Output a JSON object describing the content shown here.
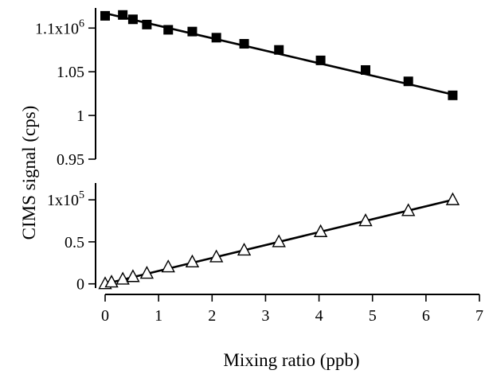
{
  "chart_data": {
    "type": "scatter",
    "xlabel": "Mixing ratio (ppb)",
    "ylabel": "CIMS signal (cps)",
    "xlim": [
      0,
      7
    ],
    "x_ticks": [
      {
        "value": 0,
        "label": "0"
      },
      {
        "value": 1,
        "label": "1"
      },
      {
        "value": 2,
        "label": "2"
      },
      {
        "value": 3,
        "label": "3"
      },
      {
        "value": 4,
        "label": "4"
      },
      {
        "value": 5,
        "label": "5"
      },
      {
        "value": 6,
        "label": "6"
      },
      {
        "value": 7,
        "label": "7"
      }
    ],
    "panels": [
      {
        "id": "top",
        "marker": "filled-square",
        "ylim": [
          950000,
          1123000
        ],
        "y_ticks": [
          {
            "value": 950000,
            "label": "0.95",
            "exp": ""
          },
          {
            "value": 1000000,
            "label": "1",
            "exp": ""
          },
          {
            "value": 1050000,
            "label": "1.05",
            "exp": ""
          },
          {
            "value": 1100000,
            "label": "1.1x10",
            "exp": "6"
          }
        ],
        "x": [
          0,
          0.33,
          0.52,
          0.78,
          1.18,
          1.63,
          2.08,
          2.6,
          3.25,
          4.03,
          4.87,
          5.67,
          6.5
        ],
        "y": [
          1114000,
          1115000,
          1110000,
          1104000,
          1098000,
          1096000,
          1089000,
          1082000,
          1075000,
          1063000,
          1052000,
          1039000,
          1023000
        ],
        "fit": {
          "x": [
            0,
            6.5
          ],
          "y": [
            1117000,
            1024000
          ]
        }
      },
      {
        "id": "bottom",
        "marker": "open-triangle",
        "ylim": [
          -5000,
          120000
        ],
        "y_ticks": [
          {
            "value": 0,
            "label": "0",
            "exp": ""
          },
          {
            "value": 50000,
            "label": "0.5",
            "exp": ""
          },
          {
            "value": 100000,
            "label": "1x10",
            "exp": "5"
          }
        ],
        "x": [
          0,
          0.12,
          0.33,
          0.52,
          0.78,
          1.18,
          1.63,
          2.08,
          2.6,
          3.25,
          4.03,
          4.87,
          5.67,
          6.5
        ],
        "y": [
          0,
          2000,
          5500,
          8500,
          12500,
          20000,
          26000,
          32000,
          40000,
          50000,
          62000,
          75000,
          87000,
          100000
        ],
        "fit": {
          "x": [
            0,
            6.5
          ],
          "y": [
            0,
            100000
          ]
        }
      }
    ]
  }
}
